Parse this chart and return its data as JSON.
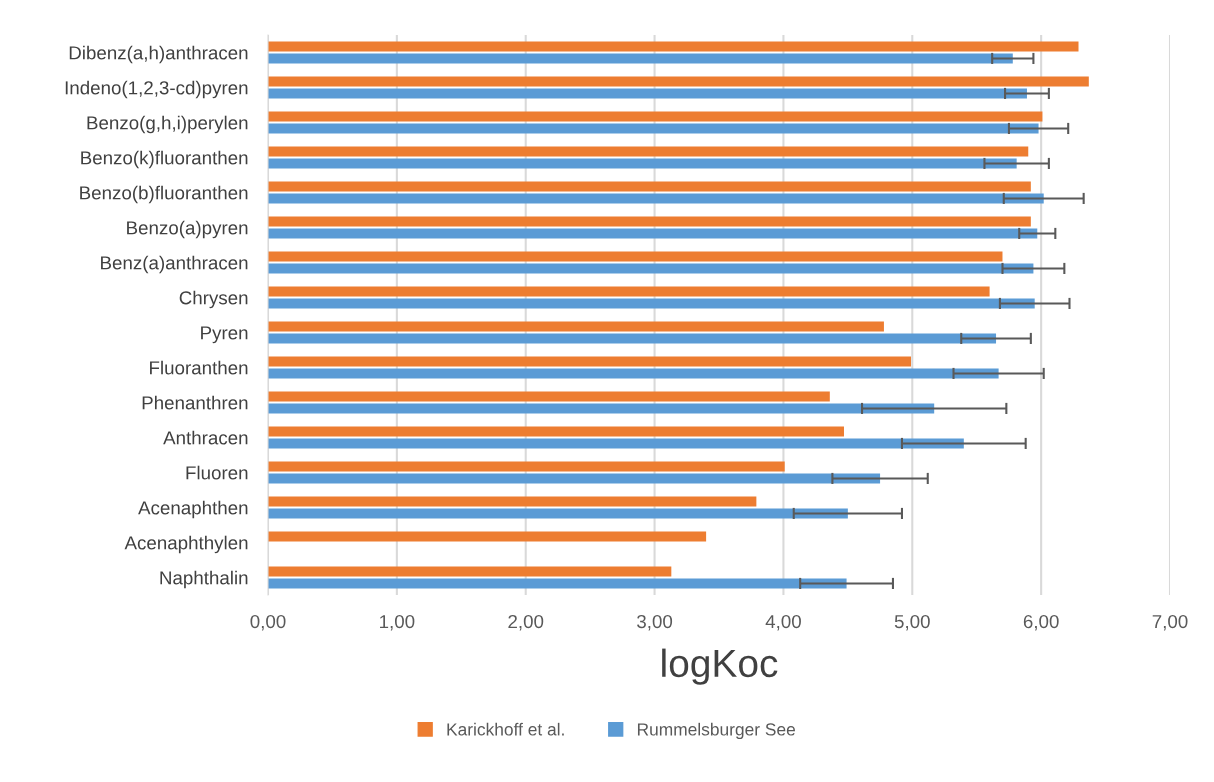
{
  "chart_data": {
    "type": "bar",
    "orientation": "horizontal",
    "xlabel": "logKoc",
    "categories": [
      "Dibenz(a,h)anthracen",
      "Indeno(1,2,3-cd)pyren",
      "Benzo(g,h,i)perylen",
      "Benzo(k)fluoranthen",
      "Benzo(b)fluoranthen",
      "Benzo(a)pyren",
      "Benz(a)anthracen",
      "Chrysen",
      "Pyren",
      "Fluoranthen",
      "Phenanthren",
      "Anthracen",
      "Fluoren",
      "Acenaphthen",
      "Acenaphthylen",
      "Naphthalin"
    ],
    "series": [
      {
        "name": "Karickhoff et al.",
        "color": "#ed7d31",
        "values": [
          6.29,
          6.37,
          6.01,
          5.9,
          5.92,
          5.92,
          5.7,
          5.6,
          4.78,
          4.99,
          4.36,
          4.47,
          4.01,
          3.79,
          3.4,
          3.13
        ]
      },
      {
        "name": "Rummelsburger See",
        "color": "#5b9bd5",
        "values": [
          5.78,
          5.89,
          5.98,
          5.81,
          6.02,
          5.97,
          5.94,
          5.95,
          5.65,
          5.67,
          5.17,
          5.4,
          4.75,
          4.5,
          null,
          4.49
        ],
        "errors": [
          0.16,
          0.17,
          0.23,
          0.25,
          0.31,
          0.14,
          0.24,
          0.27,
          0.27,
          0.35,
          0.56,
          0.48,
          0.37,
          0.42,
          null,
          0.36
        ]
      }
    ],
    "xlim": [
      0,
      7
    ],
    "xticks": [
      {
        "value": 0,
        "label": "0,00"
      },
      {
        "value": 1,
        "label": "1,00"
      },
      {
        "value": 2,
        "label": "2,00"
      },
      {
        "value": 3,
        "label": "3,00"
      },
      {
        "value": 4,
        "label": "4,00"
      },
      {
        "value": 5,
        "label": "5,00"
      },
      {
        "value": 6,
        "label": "6,00"
      },
      {
        "value": 7,
        "label": "7,00"
      }
    ],
    "grid": "x",
    "legend": "bottom"
  }
}
